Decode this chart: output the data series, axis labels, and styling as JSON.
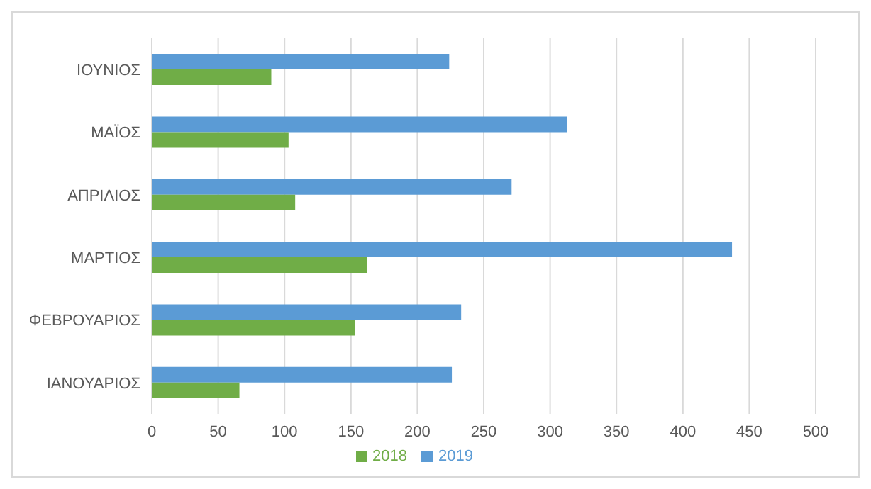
{
  "chart_data": {
    "type": "bar",
    "orientation": "horizontal",
    "categories": [
      "ΙΟΥΝΙΟΣ",
      "ΜΑΪΟΣ",
      "ΑΠΡΙΛΙΟΣ",
      "ΜΑΡΤΙΟΣ",
      "ΦΕΒΡΟΥΑΡΙΟΣ",
      "ΙΑΝΟΥΑΡΙΟΣ"
    ],
    "series": [
      {
        "name": "2019",
        "color": "#5b9bd5",
        "values": [
          224,
          313,
          271,
          437,
          233,
          226
        ]
      },
      {
        "name": "2018",
        "color": "#70ad47",
        "values": [
          90,
          103,
          108,
          162,
          153,
          66
        ]
      }
    ],
    "xlim": [
      0,
      500
    ],
    "xticks": [
      0,
      50,
      100,
      150,
      200,
      250,
      300,
      350,
      400,
      450,
      500
    ],
    "grid": "x",
    "legend": "bottom"
  }
}
